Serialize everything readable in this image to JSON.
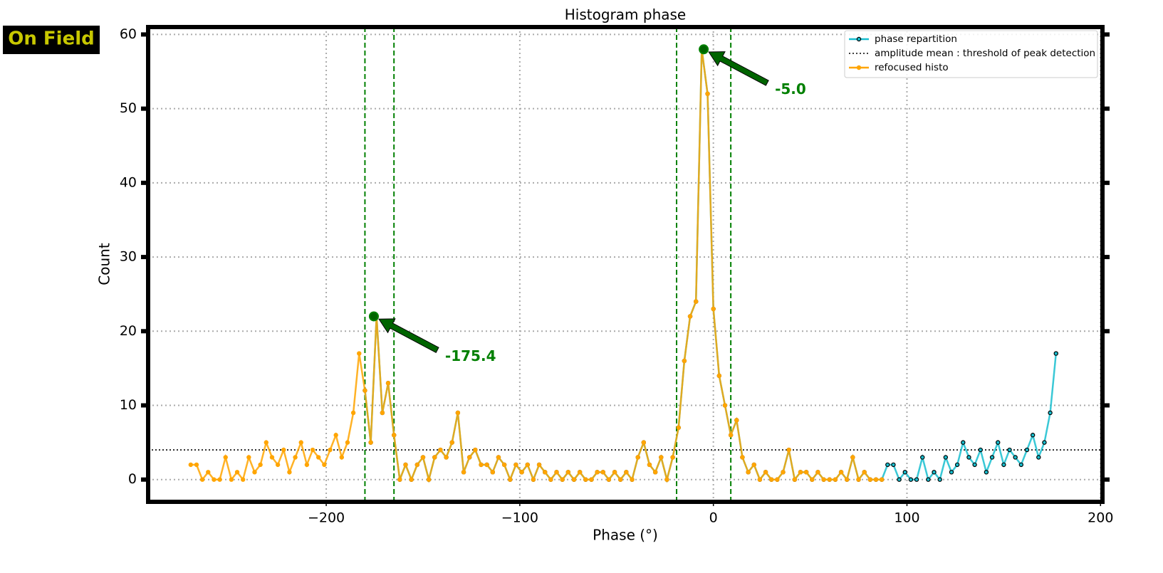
{
  "badge": "On Field",
  "chart_data": {
    "type": "line",
    "title": "Histogram phase",
    "x_label": "Phase (°)",
    "y_label": "Count",
    "xlim": [
      -292,
      201
    ],
    "ylim": [
      -3,
      61
    ],
    "xticks": [
      {
        "value": -200,
        "label": "−200"
      },
      {
        "value": -100,
        "label": "−100"
      },
      0,
      100,
      200
    ],
    "yticks": [
      0,
      10,
      20,
      30,
      40,
      50,
      60
    ],
    "grid": true,
    "legend": "upper right",
    "series": [
      {
        "name": "phase repartition",
        "color": "#17becf",
        "marker_edge": "#000000",
        "x": [
          -180,
          -177,
          -174,
          -171,
          -168,
          -165,
          -162,
          -159,
          -156,
          -153,
          -150,
          -147,
          -144,
          -141,
          -138,
          -135,
          -132,
          -129,
          -126,
          -123,
          -120,
          -117,
          -114,
          -111,
          -108,
          -105,
          -102,
          -99,
          -96,
          -93,
          -90,
          -87,
          -84,
          -81,
          -78,
          -75,
          -72,
          -69,
          -66,
          -63,
          -60,
          -57,
          -54,
          -51,
          -48,
          -45,
          -42,
          -39,
          -36,
          -33,
          -30,
          -27,
          -24,
          -21,
          -18,
          -15,
          -12,
          -9,
          -6,
          -3,
          0,
          3,
          6,
          9,
          12,
          15,
          18,
          21,
          24,
          27,
          30,
          33,
          36,
          39,
          42,
          45,
          48,
          51,
          54,
          57,
          60,
          63,
          66,
          69,
          72,
          75,
          78,
          81,
          84,
          87,
          90,
          93,
          96,
          99,
          102,
          105,
          108,
          111,
          114,
          117,
          120,
          123,
          126,
          129,
          132,
          135,
          138,
          141,
          144,
          147,
          150,
          153,
          156,
          159,
          162,
          165,
          168,
          171,
          174,
          177
        ],
        "values": [
          12,
          5,
          22,
          9,
          13,
          6,
          0,
          2,
          0,
          2,
          3,
          0,
          3,
          4,
          3,
          5,
          9,
          1,
          3,
          4,
          2,
          2,
          1,
          3,
          2,
          0,
          2,
          1,
          2,
          0,
          2,
          1,
          0,
          1,
          0,
          1,
          0,
          1,
          0,
          0,
          1,
          1,
          0,
          1,
          0,
          1,
          0,
          3,
          5,
          2,
          1,
          3,
          0,
          3,
          7,
          16,
          22,
          24,
          58,
          52,
          23,
          14,
          10,
          6,
          8,
          3,
          1,
          2,
          0,
          1,
          0,
          0,
          1,
          4,
          0,
          1,
          1,
          0,
          1,
          0,
          0,
          0,
          1,
          0,
          3,
          0,
          1,
          0,
          0,
          0,
          2,
          2,
          0,
          1,
          0,
          0,
          3,
          0,
          1,
          0,
          3,
          1,
          2,
          5,
          3,
          2,
          4,
          1,
          3,
          5,
          2,
          4,
          3,
          2,
          4,
          6,
          3,
          5,
          9,
          17
        ]
      },
      {
        "name": "refocused histo",
        "color": "#ffa500",
        "marker_edge": "#ffa500",
        "x": [
          -270,
          -267,
          -264,
          -261,
          -258,
          -255,
          -252,
          -249,
          -246,
          -243,
          -240,
          -237,
          -234,
          -231,
          -228,
          -225,
          -222,
          -219,
          -216,
          -213,
          -210,
          -207,
          -204,
          -201,
          -198,
          -195,
          -192,
          -189,
          -186,
          -183,
          -180,
          -177,
          -174,
          -171,
          -168,
          -165,
          -162,
          -159,
          -156,
          -153,
          -150,
          -147,
          -144,
          -141,
          -138,
          -135,
          -132,
          -129,
          -126,
          -123,
          -120,
          -117,
          -114,
          -111,
          -108,
          -105,
          -102,
          -99,
          -96,
          -93,
          -90,
          -87,
          -84,
          -81,
          -78,
          -75,
          -72,
          -69,
          -66,
          -63,
          -60,
          -57,
          -54,
          -51,
          -48,
          -45,
          -42,
          -39,
          -36,
          -33,
          -30,
          -27,
          -24,
          -21,
          -18,
          -15,
          -12,
          -9,
          -6,
          -3,
          0,
          3,
          6,
          9,
          12,
          15,
          18,
          21,
          24,
          27,
          30,
          33,
          36,
          39,
          42,
          45,
          48,
          51,
          54,
          57,
          60,
          63,
          66,
          69,
          72,
          75,
          78,
          81,
          84,
          87
        ],
        "values": [
          2,
          2,
          0,
          1,
          0,
          0,
          3,
          0,
          1,
          0,
          3,
          1,
          2,
          5,
          3,
          2,
          4,
          1,
          3,
          5,
          2,
          4,
          3,
          2,
          4,
          6,
          3,
          5,
          9,
          17,
          12,
          5,
          22,
          9,
          13,
          6,
          0,
          2,
          0,
          2,
          3,
          0,
          3,
          4,
          3,
          5,
          9,
          1,
          3,
          4,
          2,
          2,
          1,
          3,
          2,
          0,
          2,
          1,
          2,
          0,
          2,
          1,
          0,
          1,
          0,
          1,
          0,
          1,
          0,
          0,
          1,
          1,
          0,
          1,
          0,
          1,
          0,
          3,
          5,
          2,
          1,
          3,
          0,
          3,
          7,
          16,
          22,
          24,
          58,
          52,
          23,
          14,
          10,
          6,
          8,
          3,
          1,
          2,
          0,
          1,
          0,
          0,
          1,
          4,
          0,
          1,
          1,
          0,
          1,
          0,
          0,
          0,
          1,
          0,
          3,
          0,
          1,
          0,
          0,
          0
        ]
      }
    ],
    "threshold": {
      "name": "amplitude mean : threshold of peak detection",
      "value": 4,
      "color": "#000000"
    },
    "vlines": {
      "color": "#008000",
      "values": [
        -180,
        -165,
        -19,
        9
      ]
    },
    "peaks": [
      {
        "x": -175.4,
        "y": 22,
        "label": "-175.4"
      },
      {
        "x": -5,
        "y": 58,
        "label": "-5.0"
      }
    ]
  }
}
